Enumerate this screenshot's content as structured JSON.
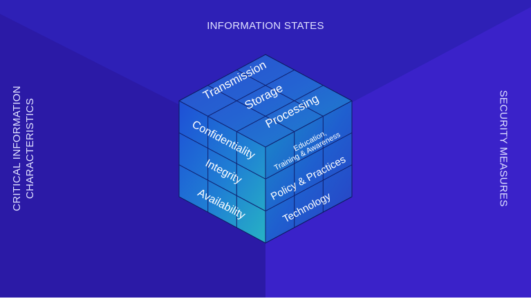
{
  "axes": {
    "top": "INFORMATION STATES",
    "left_line1": "CRITICAL INFORMATION",
    "left_line2": "CHARACTERISTICS",
    "right": "SECURITY MEASURES"
  },
  "cube": {
    "top_face": [
      "Transmission",
      "Storage",
      "Processing"
    ],
    "left_face": [
      "Confidentiality",
      "Integrity",
      "Availability"
    ],
    "right_face_line1": "Education,",
    "right_face_line2": "Training & Awareness",
    "right_face": [
      "Policy & Practices",
      "Technology"
    ]
  },
  "colors": {
    "background": "#2a1fb8",
    "corner_left": "#2b1aa6",
    "corner_right": "#3a22c9",
    "top_face": "#2a5fd0",
    "left_face": "#1f6fd8",
    "right_face": "#1e56c8",
    "grid_line": "#0f1f6e"
  }
}
